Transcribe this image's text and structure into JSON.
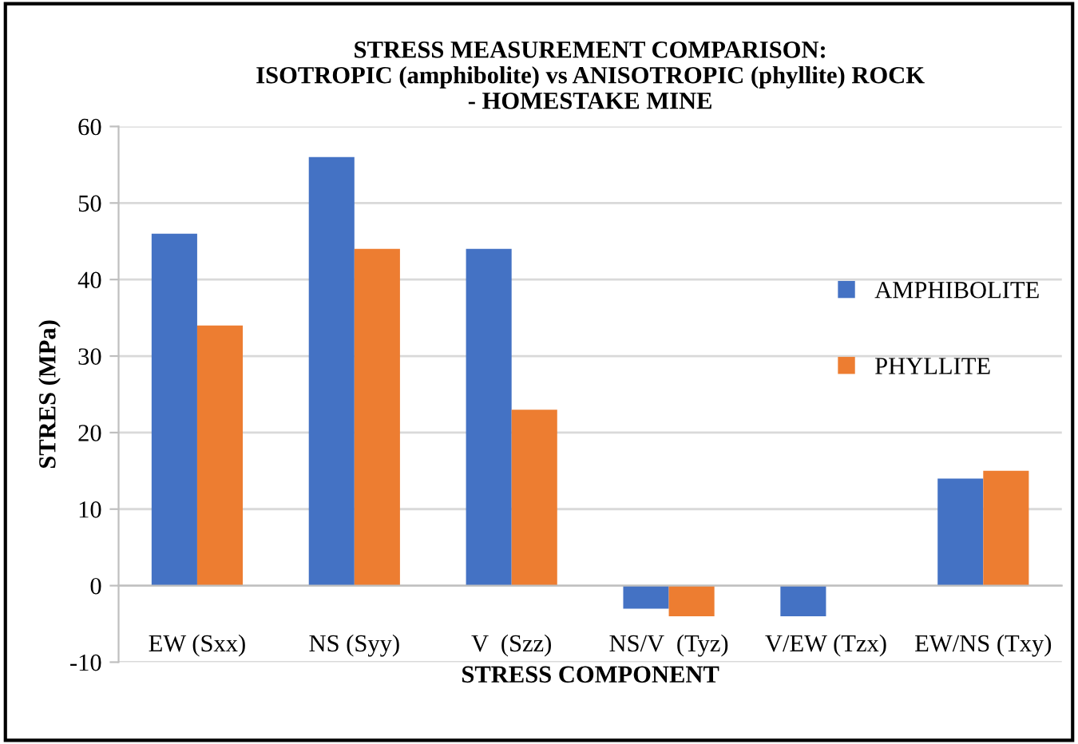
{
  "chart_data": {
    "type": "bar",
    "title": "STRESS MEASUREMENT COMPARISON:\nISOTROPIC (amphibolite) vs ANISOTROPIC (phyllite) ROCK\n- HOMESTAKE MINE",
    "xlabel": "STRESS COMPONENT",
    "ylabel": "STRES (MPa)",
    "categories": [
      "EW (Sxx)",
      "NS (Syy)",
      "V  (Szz)",
      "NS/V  (Tyz)",
      "V/EW (Tzx)",
      "EW/NS (Txy)"
    ],
    "series": [
      {
        "name": "AMPHIBOLITE",
        "color": "#4472c4",
        "values": [
          46,
          56,
          44,
          -3,
          -4,
          14
        ]
      },
      {
        "name": "PHYLLITE",
        "color": "#ed7d31",
        "values": [
          34,
          44,
          23,
          -4,
          0,
          15
        ]
      }
    ],
    "ylim": [
      -10,
      60
    ],
    "yticks": [
      -10,
      0,
      10,
      20,
      30,
      40,
      50,
      60
    ],
    "grid": "y",
    "legend": "right"
  }
}
